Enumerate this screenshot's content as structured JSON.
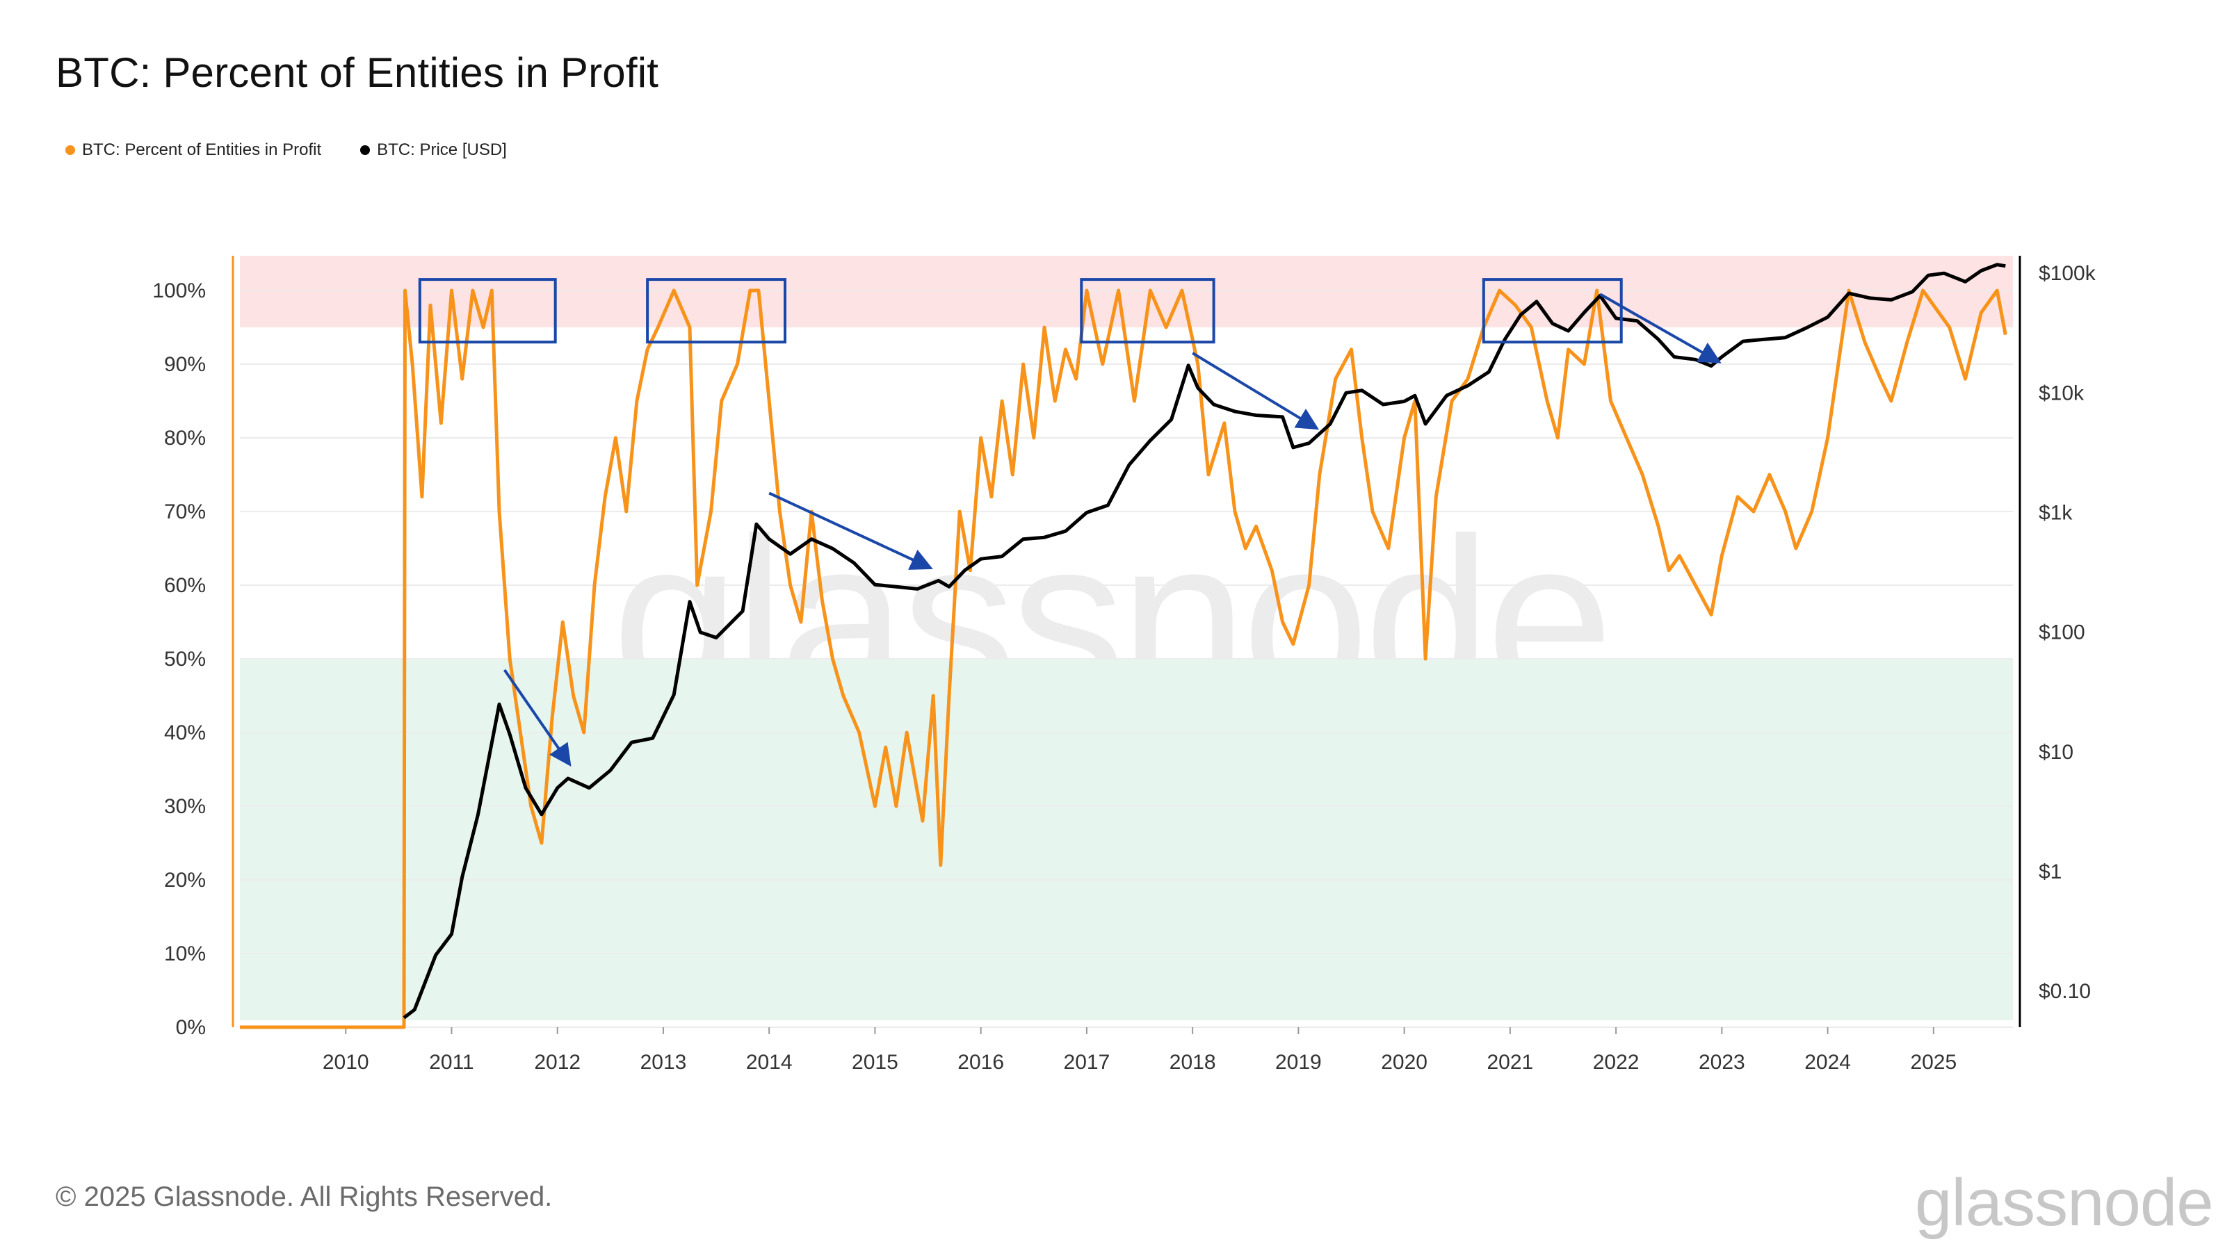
{
  "title": "BTC: Percent of Entities in Profit",
  "legend": [
    {
      "label": "BTC: Percent of Entities in Profit",
      "color": "#f7931a"
    },
    {
      "label": "BTC: Price [USD]",
      "color": "#000000"
    }
  ],
  "footer": "© 2025 Glassnode. All Rights Reserved.",
  "brand": "glassnode",
  "colors": {
    "percent": "#f7931a",
    "price": "#000000",
    "top_band": "#fde3e3",
    "bottom_band": "#e6f6ef",
    "annotation": "#1a47a8",
    "grid": "#ececec"
  },
  "chart_data": {
    "type": "line",
    "title": "BTC: Percent of Entities in Profit",
    "x_ticks": [
      "2010",
      "2011",
      "2012",
      "2013",
      "2014",
      "2015",
      "2016",
      "2017",
      "2018",
      "2019",
      "2020",
      "2021",
      "2022",
      "2023",
      "2024",
      "2025"
    ],
    "y_left": {
      "ticks": [
        "0%",
        "10%",
        "20%",
        "30%",
        "40%",
        "50%",
        "60%",
        "70%",
        "80%",
        "90%",
        "100%"
      ],
      "range": [
        0,
        100
      ]
    },
    "y_right": {
      "ticks": [
        "$0.10",
        "$1",
        "$10",
        "$100",
        "$1k",
        "$10k",
        "$100k"
      ],
      "scale": "log",
      "range": [
        0.05,
        140000
      ]
    },
    "shaded_bands": [
      {
        "from": 95,
        "to": 100,
        "color": "#fde3e3"
      },
      {
        "from": 0,
        "to": 50,
        "color": "#e6f6ef"
      }
    ],
    "series": [
      {
        "name": "BTC: Percent of Entities in Profit",
        "axis": "left",
        "color": "#f7931a",
        "points": [
          [
            2009.0,
            0
          ],
          [
            2010.55,
            0
          ],
          [
            2010.56,
            100
          ],
          [
            2010.63,
            90
          ],
          [
            2010.72,
            72
          ],
          [
            2010.8,
            98
          ],
          [
            2010.9,
            82
          ],
          [
            2011.0,
            100
          ],
          [
            2011.1,
            88
          ],
          [
            2011.2,
            100
          ],
          [
            2011.3,
            95
          ],
          [
            2011.38,
            100
          ],
          [
            2011.45,
            70
          ],
          [
            2011.55,
            50
          ],
          [
            2011.65,
            40
          ],
          [
            2011.75,
            30
          ],
          [
            2011.85,
            25
          ],
          [
            2011.95,
            42
          ],
          [
            2012.05,
            55
          ],
          [
            2012.15,
            45
          ],
          [
            2012.25,
            40
          ],
          [
            2012.35,
            60
          ],
          [
            2012.45,
            72
          ],
          [
            2012.55,
            80
          ],
          [
            2012.65,
            70
          ],
          [
            2012.75,
            85
          ],
          [
            2012.85,
            92
          ],
          [
            2012.95,
            95
          ],
          [
            2013.1,
            100
          ],
          [
            2013.25,
            95
          ],
          [
            2013.32,
            60
          ],
          [
            2013.45,
            70
          ],
          [
            2013.55,
            85
          ],
          [
            2013.7,
            90
          ],
          [
            2013.82,
            100
          ],
          [
            2013.9,
            100
          ],
          [
            2014.0,
            85
          ],
          [
            2014.1,
            70
          ],
          [
            2014.2,
            60
          ],
          [
            2014.3,
            55
          ],
          [
            2014.4,
            70
          ],
          [
            2014.5,
            58
          ],
          [
            2014.6,
            50
          ],
          [
            2014.7,
            45
          ],
          [
            2014.85,
            40
          ],
          [
            2015.0,
            30
          ],
          [
            2015.1,
            38
          ],
          [
            2015.2,
            30
          ],
          [
            2015.3,
            40
          ],
          [
            2015.45,
            28
          ],
          [
            2015.55,
            45
          ],
          [
            2015.62,
            22
          ],
          [
            2015.7,
            45
          ],
          [
            2015.8,
            70
          ],
          [
            2015.9,
            62
          ],
          [
            2016.0,
            80
          ],
          [
            2016.1,
            72
          ],
          [
            2016.2,
            85
          ],
          [
            2016.3,
            75
          ],
          [
            2016.4,
            90
          ],
          [
            2016.5,
            80
          ],
          [
            2016.6,
            95
          ],
          [
            2016.7,
            85
          ],
          [
            2016.8,
            92
          ],
          [
            2016.9,
            88
          ],
          [
            2017.0,
            100
          ],
          [
            2017.15,
            90
          ],
          [
            2017.3,
            100
          ],
          [
            2017.45,
            85
          ],
          [
            2017.6,
            100
          ],
          [
            2017.75,
            95
          ],
          [
            2017.9,
            100
          ],
          [
            2018.05,
            90
          ],
          [
            2018.15,
            75
          ],
          [
            2018.3,
            82
          ],
          [
            2018.4,
            70
          ],
          [
            2018.5,
            65
          ],
          [
            2018.6,
            68
          ],
          [
            2018.75,
            62
          ],
          [
            2018.85,
            55
          ],
          [
            2018.95,
            52
          ],
          [
            2019.1,
            60
          ],
          [
            2019.2,
            75
          ],
          [
            2019.35,
            88
          ],
          [
            2019.5,
            92
          ],
          [
            2019.6,
            80
          ],
          [
            2019.7,
            70
          ],
          [
            2019.85,
            65
          ],
          [
            2020.0,
            80
          ],
          [
            2020.1,
            85
          ],
          [
            2020.2,
            50
          ],
          [
            2020.3,
            72
          ],
          [
            2020.45,
            85
          ],
          [
            2020.6,
            88
          ],
          [
            2020.75,
            95
          ],
          [
            2020.9,
            100
          ],
          [
            2021.05,
            98
          ],
          [
            2021.2,
            95
          ],
          [
            2021.35,
            85
          ],
          [
            2021.45,
            80
          ],
          [
            2021.55,
            92
          ],
          [
            2021.7,
            90
          ],
          [
            2021.82,
            100
          ],
          [
            2021.95,
            85
          ],
          [
            2022.1,
            80
          ],
          [
            2022.25,
            75
          ],
          [
            2022.4,
            68
          ],
          [
            2022.5,
            62
          ],
          [
            2022.6,
            64
          ],
          [
            2022.75,
            60
          ],
          [
            2022.9,
            56
          ],
          [
            2023.0,
            64
          ],
          [
            2023.15,
            72
          ],
          [
            2023.3,
            70
          ],
          [
            2023.45,
            75
          ],
          [
            2023.6,
            70
          ],
          [
            2023.7,
            65
          ],
          [
            2023.85,
            70
          ],
          [
            2024.0,
            80
          ],
          [
            2024.1,
            90
          ],
          [
            2024.2,
            100
          ],
          [
            2024.35,
            93
          ],
          [
            2024.5,
            88
          ],
          [
            2024.6,
            85
          ],
          [
            2024.75,
            93
          ],
          [
            2024.9,
            100
          ],
          [
            2025.0,
            98
          ],
          [
            2025.15,
            95
          ],
          [
            2025.3,
            88
          ],
          [
            2025.45,
            97
          ],
          [
            2025.6,
            100
          ],
          [
            2025.68,
            94
          ]
        ]
      },
      {
        "name": "BTC: Price [USD]",
        "axis": "right",
        "color": "#000000",
        "points": [
          [
            2010.55,
            0.06
          ],
          [
            2010.65,
            0.07
          ],
          [
            2010.85,
            0.2
          ],
          [
            2011.0,
            0.3
          ],
          [
            2011.1,
            0.9
          ],
          [
            2011.25,
            3
          ],
          [
            2011.45,
            25
          ],
          [
            2011.55,
            14
          ],
          [
            2011.7,
            5
          ],
          [
            2011.85,
            3
          ],
          [
            2012.0,
            5
          ],
          [
            2012.1,
            6
          ],
          [
            2012.3,
            5
          ],
          [
            2012.5,
            7
          ],
          [
            2012.7,
            12
          ],
          [
            2012.9,
            13
          ],
          [
            2013.1,
            30
          ],
          [
            2013.25,
            180
          ],
          [
            2013.35,
            100
          ],
          [
            2013.5,
            90
          ],
          [
            2013.75,
            150
          ],
          [
            2013.88,
            800
          ],
          [
            2014.0,
            600
          ],
          [
            2014.2,
            450
          ],
          [
            2014.4,
            600
          ],
          [
            2014.6,
            500
          ],
          [
            2014.8,
            380
          ],
          [
            2015.0,
            250
          ],
          [
            2015.2,
            240
          ],
          [
            2015.4,
            230
          ],
          [
            2015.6,
            270
          ],
          [
            2015.7,
            240
          ],
          [
            2015.85,
            330
          ],
          [
            2016.0,
            410
          ],
          [
            2016.2,
            430
          ],
          [
            2016.4,
            600
          ],
          [
            2016.6,
            620
          ],
          [
            2016.8,
            700
          ],
          [
            2017.0,
            1000
          ],
          [
            2017.2,
            1150
          ],
          [
            2017.4,
            2500
          ],
          [
            2017.6,
            4000
          ],
          [
            2017.8,
            6000
          ],
          [
            2017.96,
            17000
          ],
          [
            2018.05,
            11000
          ],
          [
            2018.2,
            8000
          ],
          [
            2018.4,
            7000
          ],
          [
            2018.6,
            6500
          ],
          [
            2018.85,
            6300
          ],
          [
            2018.95,
            3500
          ],
          [
            2019.1,
            3800
          ],
          [
            2019.3,
            5500
          ],
          [
            2019.45,
            10000
          ],
          [
            2019.6,
            10500
          ],
          [
            2019.8,
            8000
          ],
          [
            2020.0,
            8500
          ],
          [
            2020.1,
            9500
          ],
          [
            2020.2,
            5500
          ],
          [
            2020.4,
            9500
          ],
          [
            2020.6,
            11500
          ],
          [
            2020.8,
            15000
          ],
          [
            2020.95,
            28000
          ],
          [
            2021.1,
            45000
          ],
          [
            2021.25,
            58000
          ],
          [
            2021.4,
            38000
          ],
          [
            2021.55,
            33000
          ],
          [
            2021.7,
            47000
          ],
          [
            2021.85,
            65000
          ],
          [
            2022.0,
            42000
          ],
          [
            2022.2,
            40000
          ],
          [
            2022.4,
            28000
          ],
          [
            2022.55,
            20000
          ],
          [
            2022.75,
            19000
          ],
          [
            2022.9,
            16800
          ],
          [
            2023.0,
            20000
          ],
          [
            2023.2,
            27000
          ],
          [
            2023.4,
            28000
          ],
          [
            2023.6,
            29000
          ],
          [
            2023.8,
            35000
          ],
          [
            2024.0,
            43000
          ],
          [
            2024.2,
            68000
          ],
          [
            2024.4,
            62000
          ],
          [
            2024.6,
            60000
          ],
          [
            2024.8,
            70000
          ],
          [
            2024.95,
            96000
          ],
          [
            2025.1,
            100000
          ],
          [
            2025.3,
            85000
          ],
          [
            2025.45,
            105000
          ],
          [
            2025.6,
            118000
          ],
          [
            2025.68,
            115000
          ]
        ]
      }
    ],
    "annotations": {
      "boxes": [
        {
          "x0": 2010.7,
          "x1": 2011.98,
          "y0": 93,
          "y1": 101.5
        },
        {
          "x0": 2012.85,
          "x1": 2014.15,
          "y0": 93,
          "y1": 101.5
        },
        {
          "x0": 2016.95,
          "x1": 2018.2,
          "y0": 93,
          "y1": 101.5
        },
        {
          "x0": 2020.75,
          "x1": 2022.05,
          "y0": 93,
          "y1": 101.5
        }
      ],
      "arrows": [
        {
          "x0": 2011.5,
          "y0": 48.5,
          "x1": 2012.1,
          "y1": 36
        },
        {
          "x0": 2014.0,
          "y0": 72.5,
          "x1": 2015.5,
          "y1": 62.5
        },
        {
          "x0": 2018.0,
          "y0": 91.5,
          "x1": 2019.15,
          "y1": 81.5
        },
        {
          "x0": 2021.85,
          "y0": 99.5,
          "x1": 2022.95,
          "y1": 90.5
        }
      ]
    }
  }
}
